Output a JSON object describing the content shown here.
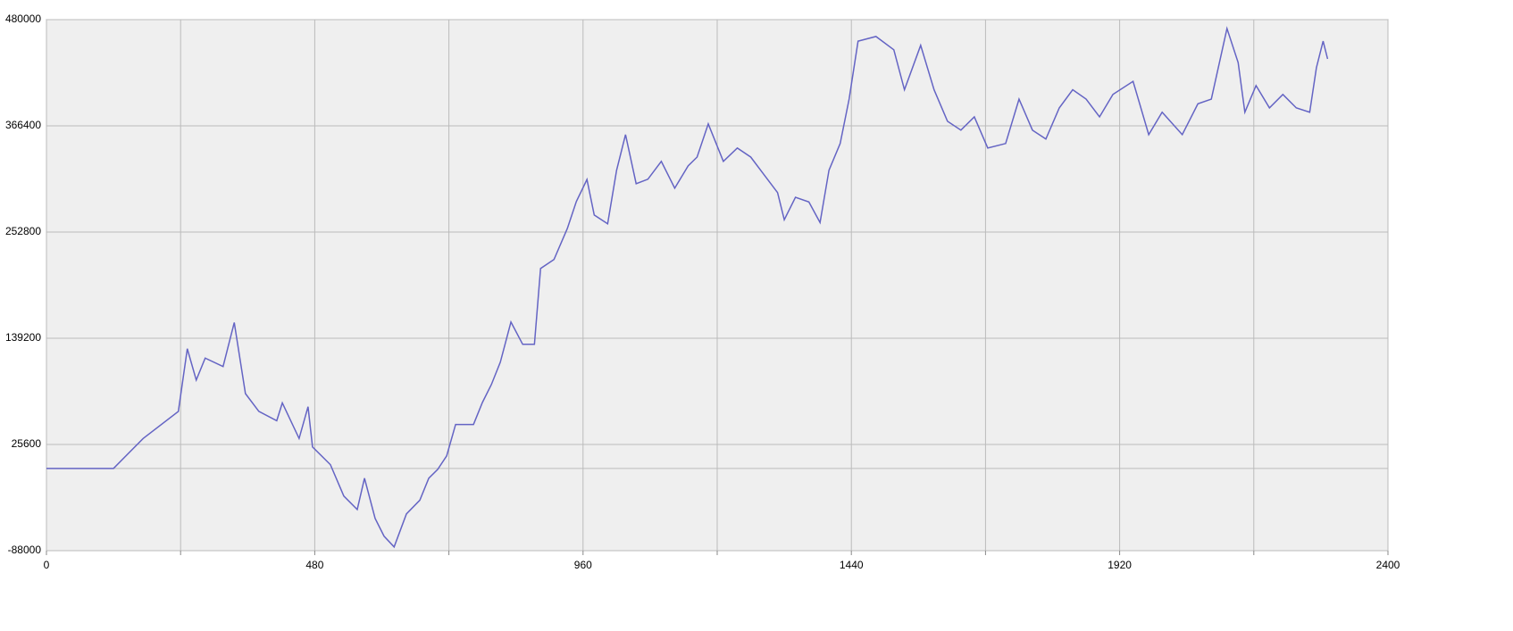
{
  "chart_data": {
    "type": "line",
    "x": [
      0,
      120,
      173,
      236,
      252,
      268,
      284,
      316,
      336,
      356,
      380,
      412,
      422,
      452,
      468,
      476,
      508,
      532,
      556,
      569,
      588,
      604,
      622,
      644,
      668,
      684,
      700,
      716,
      732,
      764,
      780,
      796,
      812,
      831,
      852,
      873,
      884,
      908,
      932,
      948,
      967,
      980,
      1004,
      1020,
      1036,
      1055,
      1076,
      1100,
      1124,
      1148,
      1164,
      1184,
      1211,
      1236,
      1260,
      1284,
      1308,
      1320,
      1340,
      1364,
      1384,
      1400,
      1420,
      1436,
      1452,
      1484,
      1516,
      1535,
      1564,
      1588,
      1612,
      1636,
      1660,
      1684,
      1716,
      1740,
      1764,
      1788,
      1812,
      1836,
      1860,
      1884,
      1908,
      1944,
      1972,
      1996,
      2032,
      2060,
      2084,
      2112,
      2132,
      2144,
      2164,
      2188,
      2212,
      2236,
      2260,
      2272,
      2284,
      2292
    ],
    "series": [
      {
        "color": "#6464c4",
        "values": [
          0,
          0,
          32000,
          61000,
          128000,
          94500,
          118000,
          109000,
          156000,
          80000,
          61000,
          51000,
          70000,
          32000,
          66000,
          23000,
          4000,
          -29600,
          -44000,
          -10500,
          -53500,
          -72500,
          -84000,
          -48700,
          -34000,
          -10500,
          -1000,
          13400,
          47000,
          47000,
          70600,
          89700,
          113600,
          156600,
          132700,
          132700,
          213800,
          223400,
          256800,
          285500,
          309000,
          271000,
          261600,
          318900,
          357000,
          304500,
          309300,
          328400,
          299700,
          323600,
          333000,
          368500,
          328400,
          342700,
          333000,
          314000,
          295000,
          266000,
          290000,
          285000,
          263000,
          319000,
          347500,
          395000,
          457000,
          462000,
          447700,
          405000,
          452500,
          405000,
          371300,
          361800,
          376000,
          342700,
          347500,
          395000,
          361800,
          352300,
          385600,
          405000,
          395000,
          376000,
          400000,
          414000,
          357000,
          381000,
          357000,
          390000,
          395000,
          470500,
          434000,
          381000,
          409500,
          385600,
          400000,
          385600,
          381000,
          428600,
          457000,
          438000
        ]
      }
    ],
    "xlim": [
      0,
      2400
    ],
    "xticks": [
      0,
      480,
      960,
      1440,
      1920,
      2400
    ],
    "xminor": [
      240,
      720,
      1200,
      1680,
      2160
    ],
    "ylim": [
      -88000,
      480000
    ],
    "yticks": [
      -88000,
      25600,
      139200,
      252800,
      366400,
      480000
    ],
    "zeroline": true,
    "grid": true
  }
}
